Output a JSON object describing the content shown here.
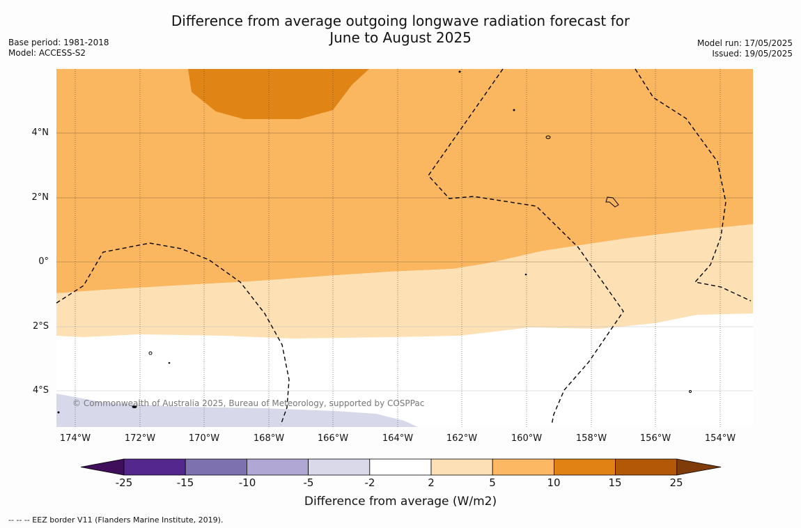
{
  "title": {
    "line1": "Difference from average outgoing longwave radiation forecast for",
    "line2": "June to August 2025"
  },
  "meta_left": {
    "base_period": "Base period: 1981-2018",
    "model": "Model: ACCESS-S2"
  },
  "meta_right": {
    "model_run": "Model run: 17/05/2025",
    "issued": "Issued: 19/05/2025"
  },
  "lat_ticks": [
    "4°N",
    "2°N",
    "0°",
    "2°S",
    "4°S"
  ],
  "lon_ticks": [
    "174°W",
    "172°W",
    "170°W",
    "168°W",
    "166°W",
    "164°W",
    "162°W",
    "160°W",
    "158°W",
    "156°W",
    "154°W"
  ],
  "copyright": "© Commonwealth of Australia 2025, Bureau of Meteorology, supported by COSPPac",
  "colorbar": {
    "title": "Difference from average (W/m2)",
    "labels": [
      "-25",
      "-15",
      "-10",
      "-5",
      "-2",
      "2",
      "5",
      "10",
      "15",
      "25"
    ],
    "colors": [
      "#3f0f5c",
      "#54278f",
      "#7e71b0",
      "#b1a7d4",
      "#d9d9ea",
      "#ffffff",
      "#fee0b6",
      "#fdb863",
      "#e08214",
      "#b35806",
      "#7f3b08"
    ]
  },
  "footnote": "--  --  -- EEZ border V11 (Flanders Marine Institute, 2019).",
  "colors": {
    "band_5_10": "#fbb660",
    "band_10_15": "#e08515",
    "band_2_5": "#fde0b4",
    "band_neg2_neg5": "#d7d8ea",
    "grid": "#999999"
  }
}
